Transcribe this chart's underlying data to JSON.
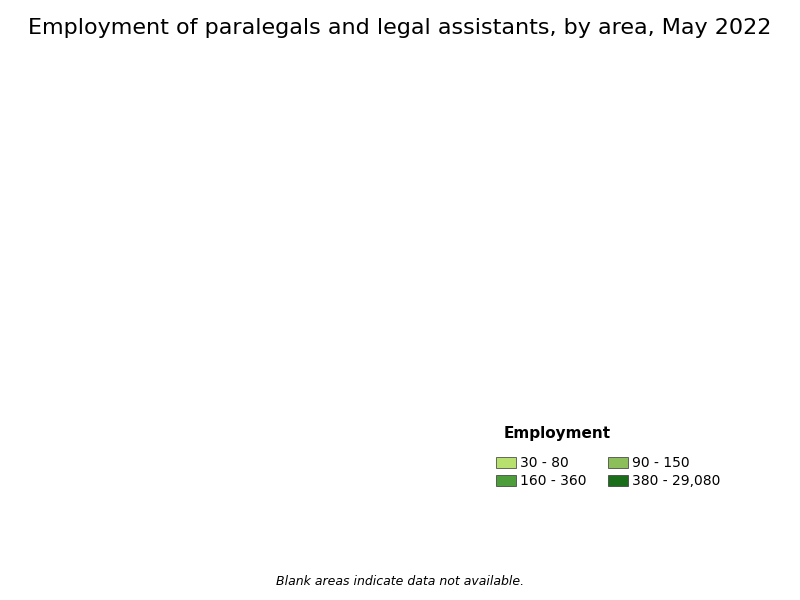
{
  "title": "Employment of paralegals and legal assistants, by area, May 2022",
  "legend_title": "Employment",
  "legend_items": [
    {
      "label": "30 - 80",
      "color": "#b8e06e"
    },
    {
      "label": "90 - 150",
      "color": "#8cbf5a"
    },
    {
      "label": "160 - 360",
      "color": "#4d9e3a"
    },
    {
      "label": "380 - 29,080",
      "color": "#1a6e1a"
    }
  ],
  "blank_note": "Blank areas indicate data not available.",
  "background_color": "#ffffff",
  "map_facecolor": "#ffffff",
  "map_edgecolor": "#333333",
  "map_linewidth": 0.3,
  "title_fontsize": 16,
  "legend_title_fontsize": 11,
  "legend_fontsize": 10,
  "note_fontsize": 9,
  "colors": {
    "bin1": "#b8e06e",
    "bin2": "#8cbf5a",
    "bin3": "#4d9e3a",
    "bin4": "#1a6e1a",
    "blank": "#ffffff",
    "no_data_tan": "#b5a07a"
  },
  "figsize": [
    8.0,
    6.0
  ],
  "dpi": 100
}
